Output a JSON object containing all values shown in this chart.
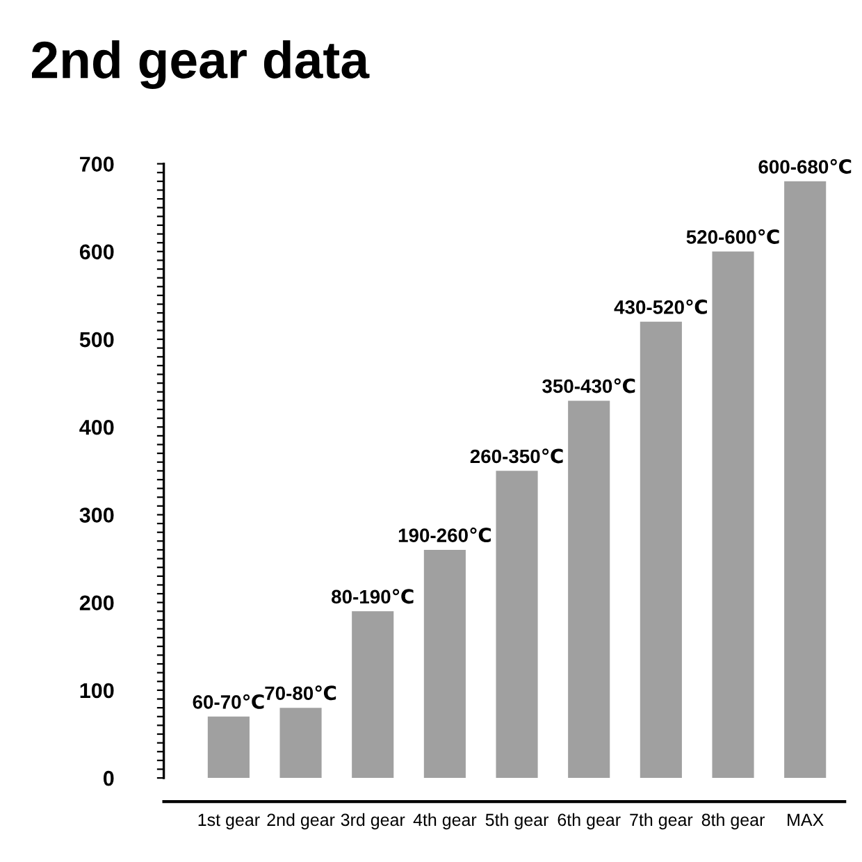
{
  "chart_data": {
    "type": "bar",
    "title": "2nd gear data",
    "categories": [
      "1st gear",
      "2nd gear",
      "3rd gear",
      "4th gear",
      "5th gear",
      "6th gear",
      "7th gear",
      "8th gear",
      "MAX"
    ],
    "values": [
      70,
      80,
      190,
      260,
      350,
      430,
      520,
      600,
      680
    ],
    "value_labels": [
      "60-70℃",
      "70-80℃",
      "80-190℃",
      "190-260℃",
      "260-350℃",
      "350-430℃",
      "430-520℃",
      "520-600℃",
      "600-680℃"
    ],
    "color": "#a0a0a0",
    "ylim": [
      -27,
      700
    ],
    "yticks": [
      0,
      {
        "value": 10,
        "label": null
      },
      {
        "value": 20,
        "label": null
      },
      {
        "value": 30,
        "label": null
      },
      {
        "value": 40,
        "label": null
      },
      {
        "value": 50,
        "label": null
      },
      {
        "value": 60,
        "label": null
      },
      {
        "value": 70,
        "label": null
      },
      {
        "value": 80,
        "label": null
      },
      {
        "value": 90,
        "label": null
      },
      100,
      {
        "value": 110,
        "label": null
      },
      {
        "value": 120,
        "label": null
      },
      {
        "value": 130,
        "label": null
      },
      {
        "value": 140,
        "label": null
      },
      {
        "value": 150,
        "label": null
      },
      {
        "value": 160,
        "label": null
      },
      {
        "value": 170,
        "label": null
      },
      {
        "value": 180,
        "label": null
      },
      {
        "value": 190,
        "label": null
      },
      200,
      {
        "value": 210,
        "label": null
      },
      {
        "value": 220,
        "label": null
      },
      {
        "value": 230,
        "label": null
      },
      {
        "value": 240,
        "label": null
      },
      {
        "value": 250,
        "label": null
      },
      {
        "value": 260,
        "label": null
      },
      {
        "value": 270,
        "label": null
      },
      {
        "value": 280,
        "label": null
      },
      {
        "value": 290,
        "label": null
      },
      300,
      {
        "value": 310,
        "label": null
      },
      {
        "value": 320,
        "label": null
      },
      {
        "value": 330,
        "label": null
      },
      {
        "value": 340,
        "label": null
      },
      {
        "value": 350,
        "label": null
      },
      {
        "value": 360,
        "label": null
      },
      {
        "value": 370,
        "label": null
      },
      {
        "value": 380,
        "label": null
      },
      {
        "value": 390,
        "label": null
      },
      400,
      {
        "value": 410,
        "label": null
      },
      {
        "value": 420,
        "label": null
      },
      {
        "value": 430,
        "label": null
      },
      {
        "value": 440,
        "label": null
      },
      {
        "value": 450,
        "label": null
      },
      {
        "value": 460,
        "label": null
      },
      {
        "value": 470,
        "label": null
      },
      {
        "value": 480,
        "label": null
      },
      {
        "value": 490,
        "label": null
      },
      500,
      {
        "value": 510,
        "label": null
      },
      {
        "value": 520,
        "label": null
      },
      {
        "value": 530,
        "label": null
      },
      {
        "value": 540,
        "label": null
      },
      {
        "value": 550,
        "label": null
      },
      {
        "value": 560,
        "label": null
      },
      {
        "value": 570,
        "label": null
      },
      {
        "value": 580,
        "label": null
      },
      {
        "value": 590,
        "label": null
      },
      600,
      {
        "value": 610,
        "label": null
      },
      {
        "value": 620,
        "label": null
      },
      {
        "value": 630,
        "label": null
      },
      {
        "value": 640,
        "label": null
      },
      {
        "value": 650,
        "label": null
      },
      {
        "value": 660,
        "label": null
      },
      {
        "value": 670,
        "label": null
      },
      {
        "value": 680,
        "label": null
      },
      {
        "value": 690,
        "label": null
      },
      700
    ],
    "grid": false
  }
}
